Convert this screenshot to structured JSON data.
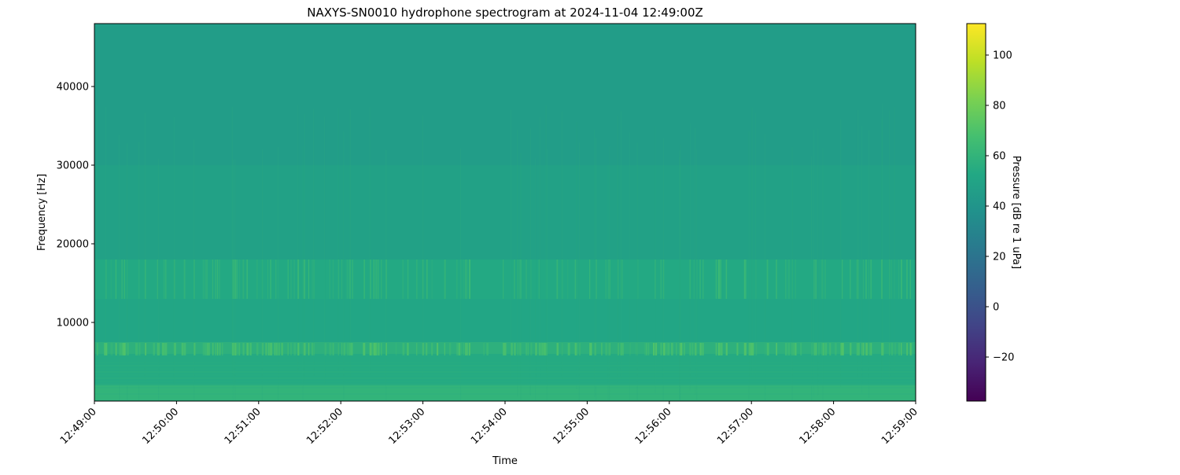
{
  "chart_data": {
    "type": "heatmap",
    "title": "NAXYS-SN0010 hydrophone spectrogram at 2024-11-04 12:49:00Z",
    "xlabel": "Time",
    "ylabel": "Frequency [Hz]",
    "x_tick_labels": [
      "12:49:00",
      "12:50:00",
      "12:51:00",
      "12:52:00",
      "12:53:00",
      "12:54:00",
      "12:55:00",
      "12:56:00",
      "12:57:00",
      "12:58:00",
      "12:59:00"
    ],
    "xlim": [
      "12:49:00",
      "12:59:00"
    ],
    "y_ticks": [
      10000,
      20000,
      30000,
      40000
    ],
    "ylim": [
      0,
      48000
    ],
    "colorbar": {
      "label": "Pressure [dB re 1 uPa]",
      "ticks": [
        -20,
        0,
        20,
        40,
        60,
        80,
        100
      ],
      "range": [
        -37.5,
        112.5
      ],
      "colormap": "viridis"
    },
    "grid": false,
    "approx_band_levels_db": [
      {
        "freq_hz": [
          0,
          2000
        ],
        "level": 60
      },
      {
        "freq_hz": [
          2000,
          6000
        ],
        "level": 54
      },
      {
        "freq_hz": [
          6000,
          7500
        ],
        "level": 58
      },
      {
        "freq_hz": [
          7500,
          13000
        ],
        "level": 51
      },
      {
        "freq_hz": [
          13000,
          18000
        ],
        "level": 53
      },
      {
        "freq_hz": [
          18000,
          30000
        ],
        "level": 48
      },
      {
        "freq_hz": [
          30000,
          48000
        ],
        "level": 45
      }
    ],
    "transient_peak_level_db": 72
  }
}
